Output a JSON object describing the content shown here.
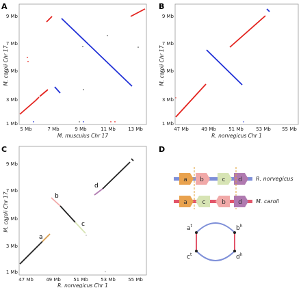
{
  "panels": {
    "A": {
      "label": "A",
      "xlabel": "M. musculus Chr 17",
      "ylabel": "M. caroli Chr 17",
      "xticks": [
        "5 Mb",
        "7 Mb",
        "9 Mb",
        "11 Mb",
        "13 Mb"
      ],
      "yticks": [
        "1 Mb",
        "3 Mb",
        "5 Mb",
        "7 Mb",
        "9 Mb"
      ]
    },
    "B": {
      "label": "B",
      "xlabel": "R. norvegicus Chr 1",
      "ylabel": "M. caroli Chr 17",
      "xticks": [
        "47 Mb",
        "49 Mb",
        "51 Mb",
        "53 Mb",
        "55 Mb"
      ],
      "yticks": [
        "1 Mb",
        "3 Mb",
        "5 Mb",
        "7 Mb",
        "9 Mb"
      ]
    },
    "C": {
      "label": "C",
      "xlabel": "R. norvegicus Chr 1",
      "ylabel": "M. caroli Chr 17",
      "xticks": [
        "47 Mb",
        "49 Mb",
        "51 Mb",
        "53 Mb",
        "55 Mb"
      ],
      "yticks": [
        "1 Mb",
        "3 Mb",
        "5 Mb",
        "7 Mb",
        "9 Mb"
      ],
      "segments": [
        "a",
        "b",
        "c",
        "d"
      ]
    },
    "D": {
      "label": "D",
      "species_top": "R. norvegicus",
      "species_bottom": "M. caroli",
      "genes_top": [
        "a",
        "b",
        "c",
        "d"
      ],
      "genes_bottom": [
        "a",
        "c",
        "b",
        "d"
      ],
      "adjacency": {
        "a": "a",
        "a_sup": "t",
        "b": "b",
        "b_sup": "h",
        "c": "c",
        "c_sup": "t",
        "d": "d",
        "d_sup": "h"
      }
    }
  },
  "colors": {
    "forward": "#e3231e",
    "reverse": "#1f2fd6",
    "gene_a": "#e9a24e",
    "gene_b": "#f1a9a8",
    "gene_c": "#d7e4b4",
    "gene_d": "#b07ab0",
    "chrom_top": "#7e8fd8",
    "chrom_bottom": "#e2556a",
    "breakpoint": "#e0a33a"
  }
}
